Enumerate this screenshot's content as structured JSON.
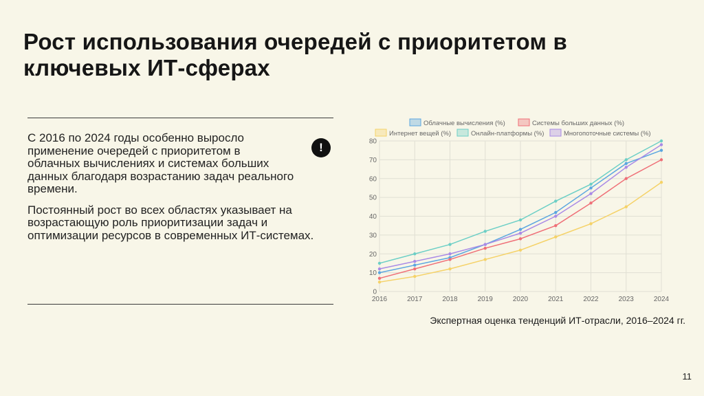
{
  "slide": {
    "title": "Рост использования очередей с приоритетом в ключевых ИТ-сферах",
    "paragraph1": "С 2016 по 2024 годы особенно выросло применение очередей с приоритетом в облачных вычислениях и системах больших данных благодаря возрастанию задач реального времени.",
    "paragraph2": "Постоянный рост во всех областях указывает на возрастающую роль приоритизации задач и оптимизации ресурсов в современных ИТ-системах.",
    "alert_symbol": "!",
    "caption": "Экспертная оценка тенденций ИТ-отрасли, 2016–2024 гг.",
    "page_number": "11"
  },
  "chart_data": {
    "type": "line",
    "x": [
      "2016",
      "2017",
      "2018",
      "2019",
      "2020",
      "2021",
      "2022",
      "2023",
      "2024"
    ],
    "ylim": [
      0,
      80
    ],
    "yticks": [
      0,
      10,
      20,
      30,
      40,
      50,
      60,
      70,
      80
    ],
    "grid": true,
    "legend_position": "top",
    "series": [
      {
        "name": "Облачные вычисления (%)",
        "color": "#5aa6e0",
        "values": [
          10,
          14,
          18,
          25,
          33,
          42,
          55,
          68,
          75
        ]
      },
      {
        "name": "Системы больших данных (%)",
        "color": "#ef6f77",
        "values": [
          7,
          12,
          17,
          23,
          28,
          35,
          47,
          60,
          70
        ]
      },
      {
        "name": "Интернет вещей (%)",
        "color": "#f5d268",
        "values": [
          5,
          8,
          12,
          17,
          22,
          29,
          36,
          45,
          58
        ]
      },
      {
        "name": "Онлайн-платформы (%)",
        "color": "#6ccfc6",
        "values": [
          15,
          20,
          25,
          32,
          38,
          48,
          57,
          70,
          80
        ]
      },
      {
        "name": "Многопоточные системы (%)",
        "color": "#a98ae6",
        "values": [
          12,
          16,
          20,
          25,
          31,
          40,
          52,
          66,
          78
        ]
      }
    ]
  }
}
